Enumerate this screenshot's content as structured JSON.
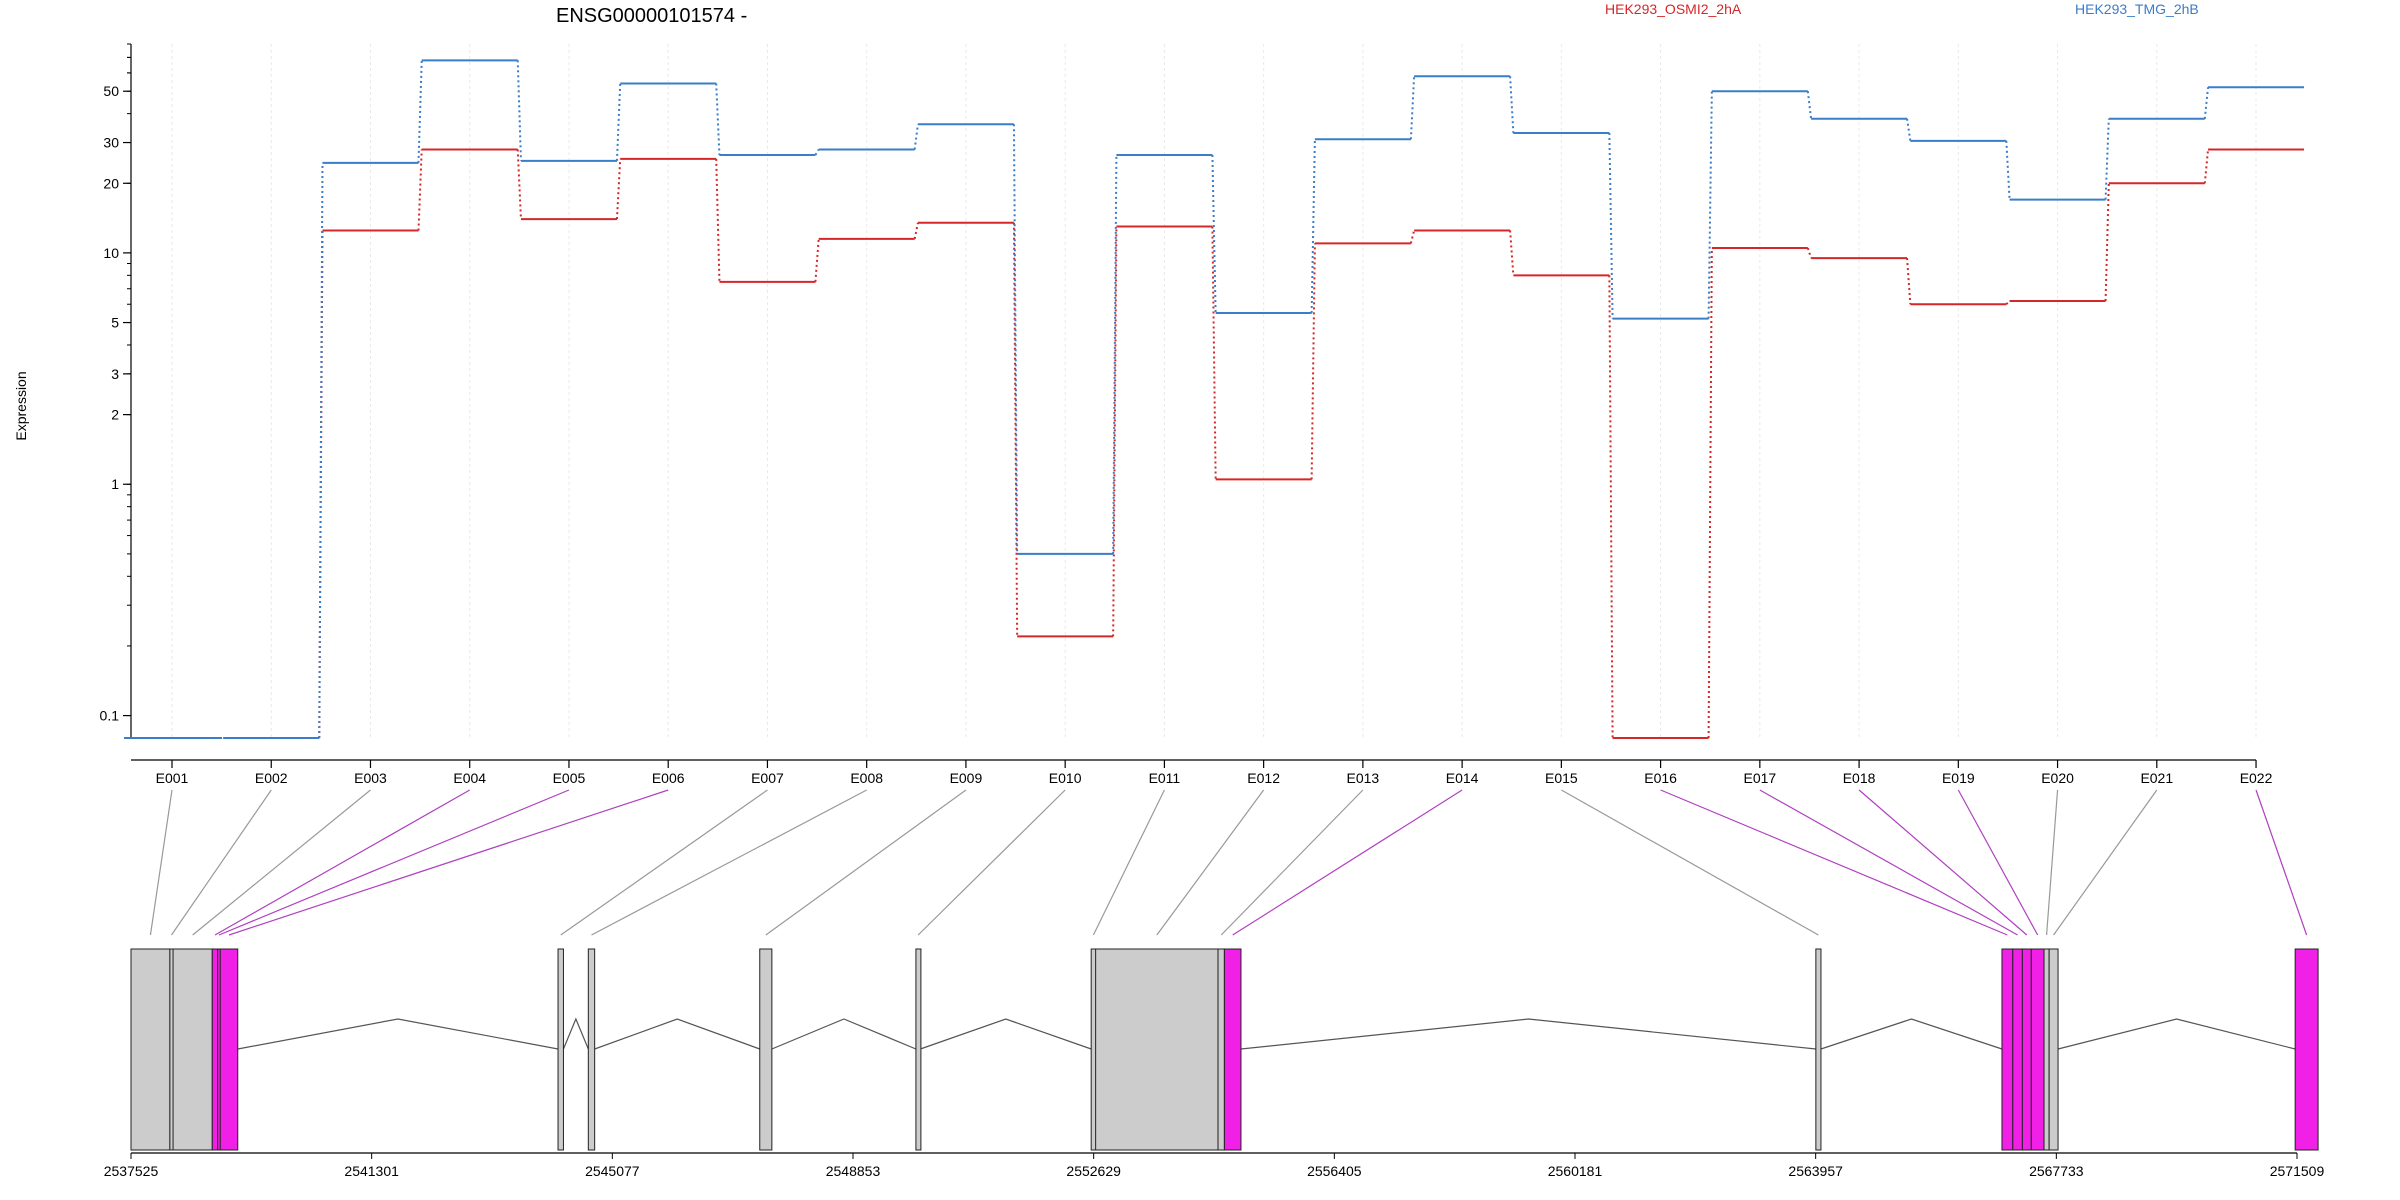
{
  "chart_data": {
    "type": "line",
    "title": "ENSG00000101574 -",
    "ylabel": "Expression",
    "yscale": "log",
    "ylim": [
      0.08,
      80
    ],
    "yticks": [
      0.1,
      1,
      2,
      3,
      5,
      10,
      20,
      30,
      50
    ],
    "yticklabels": [
      "0.1",
      "1",
      "2",
      "3",
      "5",
      "10",
      "20",
      "30",
      "50"
    ],
    "categories": [
      "E001",
      "E002",
      "E003",
      "E004",
      "E005",
      "E006",
      "E007",
      "E008",
      "E009",
      "E010",
      "E011",
      "E012",
      "E013",
      "E014",
      "E015",
      "E016",
      "E017",
      "E018",
      "E019",
      "E020",
      "E021",
      "E022"
    ],
    "series": [
      {
        "name": "HEK293_OSMI2_2hA",
        "color": "#d62728",
        "values": [
          0.08,
          0.08,
          12.5,
          28,
          14,
          25.5,
          7.5,
          11.5,
          13.5,
          0.22,
          13,
          1.05,
          11,
          12.5,
          8,
          0.08,
          10.5,
          9.5,
          6,
          6.2,
          20,
          28
        ]
      },
      {
        "name": "HEK293_TMG_2hB",
        "color": "#3a7dc9",
        "values": [
          0.08,
          0.08,
          24.5,
          68,
          25,
          54,
          26.5,
          28,
          36,
          0.5,
          26.5,
          5.5,
          31,
          58,
          33,
          5.2,
          50,
          38,
          30.5,
          17,
          38,
          52
        ]
      }
    ],
    "gene_model": {
      "coordinates": [
        "2537525",
        "2541301",
        "2545077",
        "2548853",
        "2552629",
        "2556405",
        "2560181",
        "2563957",
        "2567733",
        "2571509"
      ],
      "highlight_color": "#f020e6",
      "exon_color": "#cccccc",
      "exons": [
        {
          "id": "E001",
          "start": 2537525,
          "end": 2538135,
          "highlight": false
        },
        {
          "id": "E002",
          "start": 2538135,
          "end": 2538185,
          "highlight": false
        },
        {
          "id": "E003",
          "start": 2538185,
          "end": 2538800,
          "highlight": false
        },
        {
          "id": "E004",
          "start": 2538800,
          "end": 2538885,
          "highlight": true
        },
        {
          "id": "E005",
          "start": 2538885,
          "end": 2538925,
          "highlight": true
        },
        {
          "id": "E006",
          "start": 2538925,
          "end": 2539200,
          "highlight": true
        },
        {
          "id": "E007",
          "start": 2544225,
          "end": 2544310,
          "highlight": false
        },
        {
          "id": "E008",
          "start": 2544700,
          "end": 2544800,
          "highlight": false
        },
        {
          "id": "E009",
          "start": 2547390,
          "end": 2547580,
          "highlight": false
        },
        {
          "id": "E010",
          "start": 2549840,
          "end": 2549910,
          "highlight": false
        },
        {
          "id": "E011",
          "start": 2552590,
          "end": 2552660,
          "highlight": false
        },
        {
          "id": "E012",
          "start": 2552660,
          "end": 2554580,
          "highlight": false
        },
        {
          "id": "E013",
          "start": 2554580,
          "end": 2554680,
          "highlight": false
        },
        {
          "id": "E014",
          "start": 2554680,
          "end": 2554940,
          "highlight": true
        },
        {
          "id": "E015",
          "start": 2563960,
          "end": 2564040,
          "highlight": false
        },
        {
          "id": "E016",
          "start": 2566880,
          "end": 2567050,
          "highlight": true
        },
        {
          "id": "E017",
          "start": 2567050,
          "end": 2567200,
          "highlight": true
        },
        {
          "id": "E018",
          "start": 2567200,
          "end": 2567340,
          "highlight": true
        },
        {
          "id": "E019",
          "start": 2567340,
          "end": 2567540,
          "highlight": true
        },
        {
          "id": "E020",
          "start": 2567540,
          "end": 2567620,
          "highlight": false
        },
        {
          "id": "E021",
          "start": 2567620,
          "end": 2567760,
          "highlight": false
        },
        {
          "id": "E022",
          "start": 2571480,
          "end": 2571840,
          "highlight": true
        }
      ]
    }
  }
}
